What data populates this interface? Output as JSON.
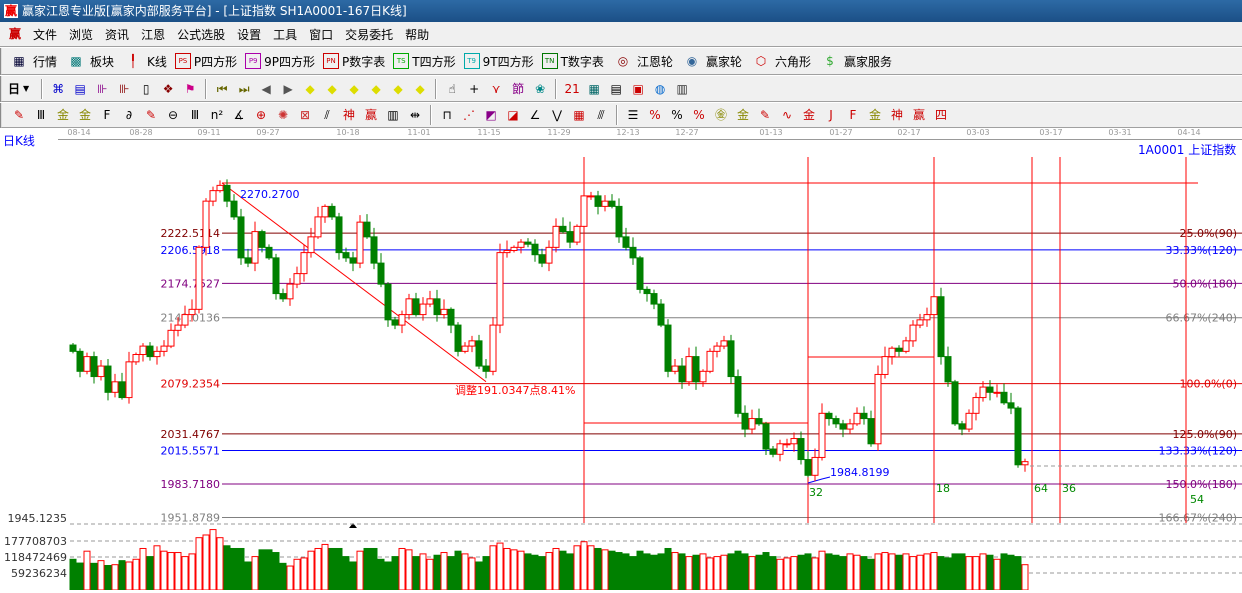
{
  "window": {
    "title": "赢家江恩专业版[赢家内部服务平台] - [上证指数  SH1A0001-167日K线]",
    "logo": "赢"
  },
  "menu": [
    "文件",
    "浏览",
    "资讯",
    "江恩",
    "公式选股",
    "设置",
    "工具",
    "窗口",
    "交易委托",
    "帮助"
  ],
  "toolbar1": [
    {
      "icon": "grid-table-icon",
      "glyph": "▦",
      "color": "#003",
      "label": "行情"
    },
    {
      "icon": "sector-blocks-icon",
      "glyph": "▩",
      "color": "#077",
      "label": "板块"
    },
    {
      "icon": "candlestick-icon",
      "glyph": "╿",
      "color": "#c00",
      "label": "K线"
    },
    {
      "icon": "ps-icon",
      "glyph": "PS",
      "color": "#c00",
      "label": "P四方形"
    },
    {
      "icon": "p9-icon",
      "glyph": "P9",
      "color": "#a0a",
      "label": "9P四方形"
    },
    {
      "icon": "pn-icon",
      "glyph": "PN",
      "color": "#c00",
      "label": "P数字表"
    },
    {
      "icon": "ts-icon",
      "glyph": "TS",
      "color": "#0a0",
      "label": "T四方形"
    },
    {
      "icon": "t9-icon",
      "glyph": "T9",
      "color": "#0aa",
      "label": "9T四方形"
    },
    {
      "icon": "tn-icon",
      "glyph": "TN",
      "color": "#070",
      "label": "T数字表"
    },
    {
      "icon": "gann-wheel-icon",
      "glyph": "◎",
      "color": "#800",
      "label": "江恩轮"
    },
    {
      "icon": "big-wheel-icon",
      "glyph": "◉",
      "color": "#369",
      "label": "赢家轮"
    },
    {
      "icon": "hexagon-icon",
      "glyph": "⬡",
      "color": "#c00",
      "label": "六角形"
    },
    {
      "icon": "dollar-icon",
      "glyph": "$",
      "color": "#3a3",
      "label": "赢家服务"
    }
  ],
  "toolbar2": {
    "period": "日",
    "icons": [
      {
        "icon": "chart-mode-icon",
        "glyph": "⌘",
        "color": "#00c"
      },
      {
        "icon": "notes-icon",
        "glyph": "▤",
        "color": "#00c"
      },
      {
        "icon": "bars-3-icon",
        "glyph": "⊪",
        "color": "#808"
      },
      {
        "icon": "bars-9-icon",
        "glyph": "⊪",
        "color": "#800"
      },
      {
        "icon": "candle-type-icon",
        "glyph": "▯",
        "color": "#000"
      },
      {
        "icon": "pattern-icon",
        "glyph": "❖",
        "color": "#800"
      },
      {
        "icon": "flag-icon",
        "glyph": "⚑",
        "color": "#c08"
      },
      {
        "icon": "first-icon",
        "glyph": "⏮",
        "color": "#660"
      },
      {
        "icon": "last-icon",
        "glyph": "⏭",
        "color": "#660"
      },
      {
        "icon": "prev-icon",
        "glyph": "◀",
        "color": "#555"
      },
      {
        "icon": "next-icon",
        "glyph": "▶",
        "color": "#555"
      },
      {
        "icon": "move-left-icon",
        "glyph": "◆",
        "color": "#dd0"
      },
      {
        "icon": "move-right-icon",
        "glyph": "◆",
        "color": "#dd0"
      },
      {
        "icon": "zoom-h-icon",
        "glyph": "◆",
        "color": "#dd0"
      },
      {
        "icon": "zoom-in-icon",
        "glyph": "◆",
        "color": "#dd0"
      },
      {
        "icon": "zoom-out-icon",
        "glyph": "◆",
        "color": "#dd0"
      },
      {
        "icon": "zoom-v-icon",
        "glyph": "◆",
        "color": "#dd0"
      },
      {
        "icon": "hand-icon",
        "glyph": "☝",
        "color": "#000"
      },
      {
        "icon": "crosshair-icon",
        "glyph": "+",
        "color": "#000"
      },
      {
        "icon": "draw-line-icon",
        "glyph": "⋎",
        "color": "#c00"
      },
      {
        "icon": "festival-icon",
        "glyph": "節",
        "color": "#808"
      },
      {
        "icon": "pattern2-icon",
        "glyph": "❀",
        "color": "#088"
      },
      {
        "icon": "calendar-icon",
        "glyph": "21",
        "color": "#c00"
      },
      {
        "icon": "calculator-icon",
        "glyph": "▦",
        "color": "#066"
      },
      {
        "icon": "report-icon",
        "glyph": "▤",
        "color": "#000"
      },
      {
        "icon": "save-icon",
        "glyph": "▣",
        "color": "#c00"
      },
      {
        "icon": "network-icon",
        "glyph": "◍",
        "color": "#06c"
      },
      {
        "icon": "print-icon",
        "glyph": "▥",
        "color": "#333"
      }
    ]
  },
  "toolbar3": {
    "icons": [
      {
        "icon": "pen-icon",
        "glyph": "✎",
        "color": "#c00"
      },
      {
        "icon": "lines-icon",
        "glyph": "Ⅲ",
        "color": "#000"
      },
      {
        "icon": "gold-icon",
        "glyph": "金",
        "color": "#880"
      },
      {
        "icon": "gold2-icon",
        "glyph": "金",
        "color": "#880"
      },
      {
        "icon": "f-icon",
        "glyph": "F",
        "color": "#000"
      },
      {
        "icon": "spiral-icon",
        "glyph": "∂",
        "color": "#000"
      },
      {
        "icon": "pen2-icon",
        "glyph": "✎",
        "color": "#c00"
      },
      {
        "icon": "circle-icon",
        "glyph": "⊖",
        "color": "#000"
      },
      {
        "icon": "lines2-icon",
        "glyph": "Ⅲ",
        "color": "#000"
      },
      {
        "icon": "n2-icon",
        "glyph": "n²",
        "color": "#000"
      },
      {
        "icon": "angle-icon",
        "glyph": "∡",
        "color": "#000"
      },
      {
        "icon": "target-icon",
        "glyph": "⊕",
        "color": "#c00"
      },
      {
        "icon": "web-icon",
        "glyph": "✺",
        "color": "#c33"
      },
      {
        "icon": "box-icon",
        "glyph": "⊠",
        "color": "#c33"
      },
      {
        "icon": "slash-icon",
        "glyph": "⫽",
        "color": "#000"
      },
      {
        "icon": "god-icon",
        "glyph": "神",
        "color": "#c00"
      },
      {
        "icon": "win-icon",
        "glyph": "赢",
        "color": "#c00"
      },
      {
        "icon": "ruler-icon",
        "glyph": "▥",
        "color": "#000"
      },
      {
        "icon": "measure-icon",
        "glyph": "⇹",
        "color": "#000"
      },
      {
        "icon": "box-line-icon",
        "glyph": "⊓",
        "color": "#000"
      },
      {
        "icon": "fan-icon",
        "glyph": "⋰",
        "color": "#c00"
      },
      {
        "icon": "square-fan-icon",
        "glyph": "◩",
        "color": "#808"
      },
      {
        "icon": "square-fan2-icon",
        "glyph": "◪",
        "color": "#c00"
      },
      {
        "icon": "angle2-icon",
        "glyph": "∠",
        "color": "#000"
      },
      {
        "icon": "zigzag-icon",
        "glyph": "⋁",
        "color": "#000"
      },
      {
        "icon": "grid-icon",
        "glyph": "▦",
        "color": "#c00"
      },
      {
        "icon": "parallel-icon",
        "glyph": "⫻",
        "color": "#000"
      },
      {
        "icon": "list-icon",
        "glyph": "☰",
        "color": "#000"
      },
      {
        "icon": "percent-slash-icon",
        "glyph": "%",
        "color": "#c00"
      },
      {
        "icon": "percent-icon",
        "glyph": "%",
        "color": "#000"
      },
      {
        "icon": "percent-lines-icon",
        "glyph": "%",
        "color": "#c00"
      },
      {
        "icon": "gold-circle-icon",
        "glyph": "㊎",
        "color": "#880"
      },
      {
        "icon": "gold-lines-icon",
        "glyph": "金",
        "color": "#880"
      },
      {
        "icon": "pen-lines-icon",
        "glyph": "✎",
        "color": "#c00"
      },
      {
        "icon": "wave-icon",
        "glyph": "∿",
        "color": "#c00"
      },
      {
        "icon": "gold-red-icon",
        "glyph": "金",
        "color": "#c00"
      },
      {
        "icon": "j-angle-icon",
        "glyph": "J",
        "color": "#c00"
      },
      {
        "icon": "f-angle-icon",
        "glyph": "F",
        "color": "#c00"
      },
      {
        "icon": "gold-angle-icon",
        "glyph": "金",
        "color": "#880"
      },
      {
        "icon": "god-angle-icon",
        "glyph": "神",
        "color": "#c00"
      },
      {
        "icon": "win-angle-icon",
        "glyph": "赢",
        "color": "#c00"
      },
      {
        "icon": "four-angle-icon",
        "glyph": "四",
        "color": "#c00"
      }
    ]
  },
  "chart_data": {
    "type": "candlestick",
    "period_label": "日K线",
    "symbol": "1A0001",
    "name": "上证指数",
    "date_ticks": [
      "08-14",
      "08-28",
      "09-11",
      "09-27",
      "10-18",
      "11-01",
      "11-15",
      "11-29",
      "12-13",
      "12-27",
      "01-13",
      "01-27",
      "02-17",
      "03-03",
      "03-17",
      "03-31",
      "04-14"
    ],
    "price_axis_bottom": "1945.1235",
    "closes": [
      2110,
      2091,
      2105,
      2086,
      2096,
      2071,
      2081,
      2066,
      2100,
      2107,
      2115,
      2105,
      2110,
      2115,
      2130,
      2135,
      2145,
      2150,
      2209,
      2253,
      2263,
      2268,
      2253,
      2238,
      2199,
      2194,
      2224,
      2209,
      2199,
      2165,
      2160,
      2174,
      2184,
      2204,
      2219,
      2238,
      2248,
      2238,
      2204,
      2199,
      2194,
      2233,
      2219,
      2194,
      2174,
      2140,
      2135,
      2145,
      2160,
      2145,
      2155,
      2160,
      2145,
      2150,
      2135,
      2110,
      2115,
      2120,
      2096,
      2091,
      2135,
      2204,
      2206,
      2209,
      2214,
      2212,
      2202,
      2194,
      2209,
      2229,
      2224,
      2214,
      2229,
      2258,
      2258,
      2248,
      2253,
      2248,
      2219,
      2209,
      2199,
      2169,
      2165,
      2155,
      2135,
      2091,
      2096,
      2081,
      2105,
      2081,
      2091,
      2110,
      2115,
      2120,
      2086,
      2051,
      2036,
      2046,
      2041,
      2017,
      2012,
      2022,
      2022,
      2027,
      2007,
      1992,
      2009,
      2051,
      2046,
      2041,
      2036,
      2041,
      2051,
      2046,
      2022,
      2088,
      2105,
      2113,
      2110,
      2120,
      2135,
      2140,
      2145,
      2162,
      2105,
      2081,
      2041,
      2036,
      2051,
      2066,
      2076,
      2071,
      2071,
      2061,
      2056,
      2002,
      2005
    ],
    "volume": {
      "ticks": [
        "177708703",
        "118472469",
        "59236234"
      ],
      "values": [
        110000000.0,
        96000000.0,
        140000000.0,
        95000000.0,
        105000000.0,
        87000000.0,
        90000000.0,
        105000000.0,
        100000000.0,
        110000000.0,
        150000000.0,
        120000000.0,
        160000000.0,
        140000000.0,
        135000000.0,
        135000000.0,
        120000000.0,
        130000000.0,
        190000000.0,
        200000000.0,
        220000000.0,
        190000000.0,
        160000000.0,
        150000000.0,
        150000000.0,
        100000000.0,
        120000000.0,
        145000000.0,
        145000000.0,
        135000000.0,
        95000000.0,
        85000000.0,
        110000000.0,
        115000000.0,
        140000000.0,
        150000000.0,
        165000000.0,
        150000000.0,
        150000000.0,
        120000000.0,
        100000000.0,
        140000000.0,
        150000000.0,
        150000000.0,
        110000000.0,
        100000000.0,
        120000000.0,
        150000000.0,
        145000000.0,
        120000000.0,
        130000000.0,
        110000000.0,
        125000000.0,
        135000000.0,
        120000000.0,
        140000000.0,
        130000000.0,
        115000000.0,
        100000000.0,
        120000000.0,
        160000000.0,
        170000000.0,
        150000000.0,
        145000000.0,
        140000000.0,
        130000000.0,
        125000000.0,
        120000000.0,
        135000000.0,
        150000000.0,
        140000000.0,
        130000000.0,
        160000000.0,
        175000000.0,
        160000000.0,
        150000000.0,
        145000000.0,
        140000000.0,
        135000000.0,
        130000000.0,
        120000000.0,
        140000000.0,
        130000000.0,
        125000000.0,
        130000000.0,
        150000000.0,
        135000000.0,
        130000000.0,
        120000000.0,
        125000000.0,
        130000000.0,
        115000000.0,
        120000000.0,
        125000000.0,
        130000000.0,
        140000000.0,
        130000000.0,
        120000000.0,
        125000000.0,
        135000000.0,
        120000000.0,
        110000000.0,
        115000000.0,
        120000000.0,
        125000000.0,
        130000000.0,
        115000000.0,
        140000000.0,
        130000000.0,
        125000000.0,
        120000000.0,
        130000000.0,
        125000000.0,
        120000000.0,
        110000000.0,
        130000000.0,
        135000000.0,
        130000000.0,
        125000000.0,
        130000000.0,
        120000000.0,
        125000000.0,
        130000000.0,
        135000000.0,
        120000000.0,
        115000000.0,
        130000000.0,
        130000000.0,
        120000000.0,
        120000000.0,
        130000000.0,
        125000000.0,
        110000000.0,
        130000000.0,
        125000000.0,
        120000000.0,
        90000000.0
      ]
    },
    "high": {
      "value": 2270.27,
      "label": "2270.2700"
    },
    "low": {
      "value": 1984.8199,
      "label": "1984.8199"
    },
    "adjustment_label": "调整191.0347点8.41%",
    "levels": [
      {
        "price": 2222.5114,
        "left": "2222.5114",
        "right": "25.0%(90)",
        "color": "#800000"
      },
      {
        "price": 2206.5918,
        "left": "2206.5918",
        "right": "33.33%(120)",
        "color": "#0000ff"
      },
      {
        "price": 2174.7527,
        "left": "2174.7527",
        "right": "50.0%(180)",
        "color": "#800080"
      },
      {
        "price": 2142.0136,
        "left": "2142.0136",
        "right": "66.67%(240)",
        "color": "#808080"
      },
      {
        "price": 2079.2354,
        "left": "2079.2354",
        "right": "100.0%(0)",
        "color": "#e00000"
      },
      {
        "price": 2031.4767,
        "left": "2031.4767",
        "right": "125.0%(90)",
        "color": "#800000"
      },
      {
        "price": 2015.5571,
        "left": "2015.5571",
        "right": "133.33%(120)",
        "color": "#0000ff"
      },
      {
        "price": 1983.718,
        "left": "1983.7180",
        "right": "150.0%(180)",
        "color": "#800080"
      },
      {
        "price": 1951.8789,
        "left": "1951.8789",
        "right": "166.67%(240)",
        "color": "#808080"
      }
    ],
    "time_counts": [
      "32",
      "18",
      "64",
      "36",
      "54"
    ],
    "colors": {
      "up": "#ff0000",
      "down": "#008000",
      "time_line": "#ff0000"
    }
  }
}
